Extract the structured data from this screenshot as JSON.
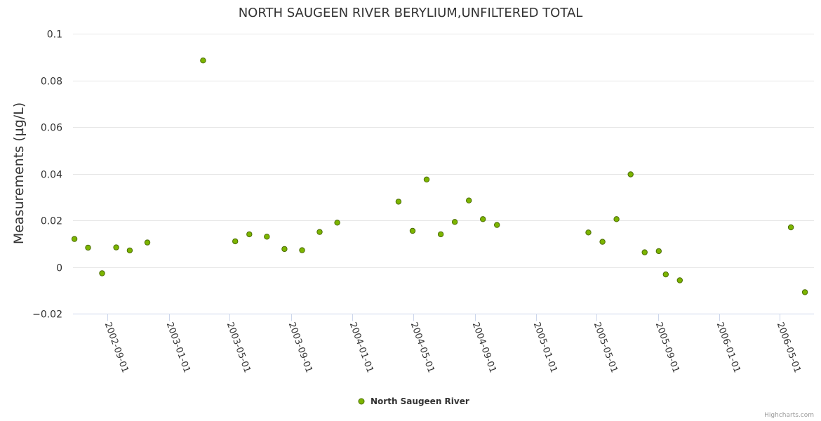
{
  "chart_data": {
    "type": "scatter",
    "title": "NORTH SAUGEEN RIVER BERYLIUM,UNFILTERED TOTAL",
    "xlabel": "",
    "ylabel": "Measurements (µg/L)",
    "ylim": [
      -0.02,
      0.1
    ],
    "yticks": [
      "0.1",
      "0.08",
      "0.06",
      "0.04",
      "0.02",
      "0",
      "−0.02"
    ],
    "ytick_values": [
      0.1,
      0.08,
      0.06,
      0.04,
      0.02,
      0,
      -0.02
    ],
    "xlim": [
      "2002-06-24",
      "2006-07-08"
    ],
    "xticks": [
      "2002-09-01",
      "2003-01-01",
      "2003-05-01",
      "2003-09-01",
      "2004-01-01",
      "2004-05-01",
      "2004-09-01",
      "2005-01-01",
      "2005-05-01",
      "2005-09-01",
      "2006-01-01",
      "2006-05-01"
    ],
    "grid": true,
    "legend": "bottom-center",
    "series": [
      {
        "name": "North Saugeen River",
        "color": "#7cb500",
        "points": [
          {
            "x": "2002-06-27",
            "y": 0.012
          },
          {
            "x": "2002-07-24",
            "y": 0.0083
          },
          {
            "x": "2002-08-21",
            "y": -0.0027
          },
          {
            "x": "2002-09-18",
            "y": 0.0084
          },
          {
            "x": "2002-10-15",
            "y": 0.0071
          },
          {
            "x": "2002-11-19",
            "y": 0.0105
          },
          {
            "x": "2003-03-10",
            "y": 0.0885
          },
          {
            "x": "2003-05-13",
            "y": 0.011
          },
          {
            "x": "2003-06-10",
            "y": 0.014
          },
          {
            "x": "2003-07-15",
            "y": 0.013
          },
          {
            "x": "2003-08-19",
            "y": 0.0077
          },
          {
            "x": "2003-09-23",
            "y": 0.0072
          },
          {
            "x": "2003-10-28",
            "y": 0.015
          },
          {
            "x": "2003-12-02",
            "y": 0.019
          },
          {
            "x": "2004-04-02",
            "y": 0.028
          },
          {
            "x": "2004-04-30",
            "y": 0.0155
          },
          {
            "x": "2004-05-28",
            "y": 0.0375
          },
          {
            "x": "2004-06-25",
            "y": 0.014
          },
          {
            "x": "2004-07-23",
            "y": 0.0193
          },
          {
            "x": "2004-08-20",
            "y": 0.0285
          },
          {
            "x": "2004-09-17",
            "y": 0.0205
          },
          {
            "x": "2004-10-15",
            "y": 0.018
          },
          {
            "x": "2005-04-15",
            "y": 0.0148
          },
          {
            "x": "2005-05-13",
            "y": 0.0108
          },
          {
            "x": "2005-06-10",
            "y": 0.0205
          },
          {
            "x": "2005-07-08",
            "y": 0.0397
          },
          {
            "x": "2005-08-05",
            "y": 0.0063
          },
          {
            "x": "2005-09-02",
            "y": 0.0068
          },
          {
            "x": "2005-09-16",
            "y": -0.0032
          },
          {
            "x": "2005-10-14",
            "y": -0.0057
          },
          {
            "x": "2006-05-23",
            "y": 0.017
          },
          {
            "x": "2006-06-20",
            "y": -0.0108
          }
        ]
      }
    ]
  },
  "credits": "Highcharts.com"
}
